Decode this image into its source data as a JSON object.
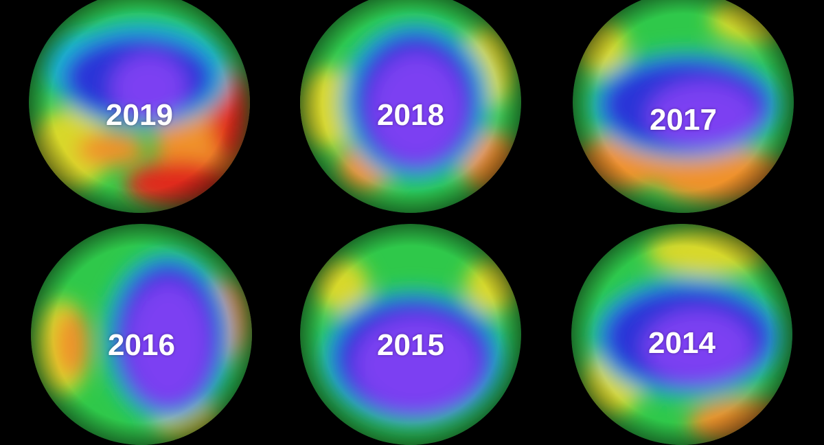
{
  "globes": [
    {
      "year": "2019"
    },
    {
      "year": "2018"
    },
    {
      "year": "2017"
    },
    {
      "year": "2016"
    },
    {
      "year": "2015"
    },
    {
      "year": "2014"
    }
  ],
  "colors": {
    "background": "#000000",
    "ozone_low_purple": "#7b3ff2",
    "ozone_low_blue": "#2a36d8",
    "ozone_mid_cyan": "#18b8d0",
    "ozone_mid_green": "#2fc84a",
    "ozone_high_yellow": "#d8d82a",
    "ozone_high_orange": "#f0922a",
    "ozone_very_high_red": "#e02a1e",
    "label_text": "#ffffff"
  }
}
